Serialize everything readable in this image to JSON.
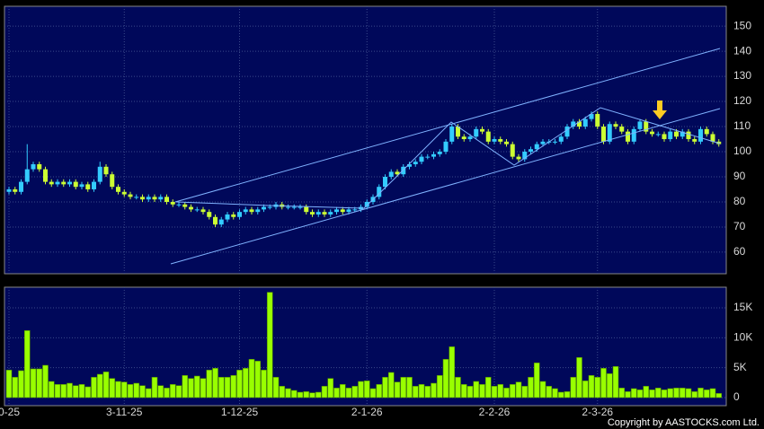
{
  "chart_data": [
    {
      "type": "candlestick",
      "open": [
        84,
        85,
        84,
        88,
        93,
        95,
        93,
        88,
        87,
        88,
        87,
        88,
        86,
        87,
        85,
        88,
        94,
        91,
        86,
        84,
        83,
        82,
        82,
        81,
        82,
        81,
        82,
        80,
        79,
        79,
        78,
        77,
        77,
        76,
        74,
        71,
        73,
        75,
        74,
        76,
        77,
        76,
        77,
        78,
        78,
        79,
        78,
        78,
        78,
        78,
        76,
        75,
        76,
        75,
        76,
        77,
        76,
        77,
        77,
        78,
        80,
        82,
        86,
        90,
        92,
        91,
        94,
        95,
        96,
        98,
        98,
        99,
        100,
        104,
        110,
        106,
        105,
        106,
        109,
        108,
        104,
        105,
        104,
        103,
        98,
        97,
        100,
        101,
        103,
        104,
        104,
        104,
        106,
        110,
        112,
        110,
        113,
        115,
        110,
        104,
        111,
        110,
        108,
        104,
        109,
        112,
        108,
        107,
        107,
        105,
        108,
        106,
        108,
        105,
        104,
        109,
        107,
        104
      ],
      "high": [
        86,
        86,
        89,
        103,
        96,
        96,
        94,
        89,
        89,
        89,
        89,
        89,
        88,
        88,
        89,
        96,
        95,
        92,
        87,
        85,
        84,
        83,
        83,
        83,
        83,
        83,
        83,
        81,
        80,
        80,
        79,
        78,
        78,
        77,
        75,
        74,
        76,
        76,
        77,
        78,
        78,
        78,
        79,
        79,
        80,
        80,
        79,
        79,
        79,
        79,
        77,
        77,
        77,
        77,
        78,
        78,
        78,
        78,
        79,
        81,
        83,
        87,
        91,
        93,
        93,
        95,
        96,
        97,
        99,
        99,
        100,
        101,
        105,
        111,
        111,
        107,
        107,
        110,
        110,
        109,
        106,
        106,
        105,
        104,
        99,
        101,
        102,
        104,
        105,
        105,
        105,
        107,
        111,
        113,
        113,
        114,
        116,
        116,
        111,
        112,
        112,
        111,
        109,
        110,
        113,
        113,
        109,
        108,
        108,
        109,
        109,
        109,
        109,
        106,
        110,
        110,
        108,
        105
      ],
      "low": [
        83,
        83,
        83,
        87,
        92,
        92,
        87,
        86,
        86,
        86,
        86,
        85,
        85,
        84,
        84,
        87,
        90,
        85,
        83,
        82,
        81,
        81,
        80,
        80,
        80,
        80,
        79,
        78,
        78,
        77,
        76,
        76,
        75,
        73,
        70,
        70,
        72,
        73,
        73,
        75,
        75,
        75,
        76,
        77,
        77,
        77,
        77,
        77,
        77,
        75,
        74,
        74,
        74,
        74,
        75,
        75,
        75,
        76,
        76,
        77,
        79,
        81,
        85,
        89,
        90,
        90,
        93,
        94,
        95,
        97,
        97,
        98,
        99,
        103,
        105,
        104,
        104,
        105,
        107,
        103,
        103,
        103,
        102,
        97,
        96,
        96,
        99,
        100,
        102,
        103,
        103,
        103,
        105,
        109,
        109,
        109,
        112,
        109,
        103,
        103,
        109,
        107,
        103,
        103,
        108,
        107,
        106,
        106,
        104,
        104,
        105,
        105,
        104,
        103,
        103,
        106,
        103,
        102
      ],
      "close": [
        85,
        84,
        88,
        93,
        95,
        93,
        88,
        87,
        88,
        87,
        88,
        86,
        87,
        85,
        88,
        94,
        91,
        86,
        84,
        83,
        82,
        82,
        81,
        82,
        81,
        82,
        80,
        79,
        79,
        78,
        77,
        77,
        76,
        74,
        71,
        73,
        75,
        74,
        76,
        77,
        76,
        77,
        78,
        78,
        79,
        78,
        78,
        78,
        78,
        76,
        75,
        76,
        75,
        76,
        77,
        76,
        77,
        77,
        78,
        80,
        82,
        86,
        90,
        92,
        91,
        94,
        95,
        96,
        98,
        98,
        99,
        100,
        104,
        110,
        106,
        105,
        106,
        109,
        108,
        104,
        105,
        104,
        103,
        98,
        97,
        100,
        101,
        103,
        104,
        104,
        104,
        106,
        110,
        112,
        110,
        113,
        115,
        110,
        104,
        111,
        110,
        108,
        104,
        109,
        112,
        108,
        107,
        107,
        105,
        108,
        106,
        108,
        105,
        104,
        109,
        107,
        104,
        103
      ],
      "up_color": "#33ccff",
      "down_color": "#ccff33",
      "ylim": [
        51.4,
        157.9
      ],
      "yticks": [
        60,
        70,
        80,
        90,
        100,
        110,
        120,
        130,
        140,
        150
      ],
      "grid": true
    },
    {
      "type": "bar",
      "categories": [
        "0-25",
        null,
        null,
        null,
        null,
        null,
        null,
        null,
        null,
        null,
        null,
        null,
        null,
        null,
        null,
        null,
        null,
        null,
        null,
        "3-11-25",
        null,
        null,
        null,
        null,
        null,
        null,
        null,
        null,
        null,
        null,
        null,
        null,
        null,
        null,
        null,
        null,
        null,
        null,
        "1-12-25",
        null,
        null,
        null,
        null,
        null,
        null,
        null,
        null,
        null,
        null,
        null,
        null,
        null,
        null,
        null,
        null,
        null,
        null,
        null,
        null,
        "2-1-26",
        null,
        null,
        null,
        null,
        null,
        null,
        null,
        null,
        null,
        null,
        null,
        null,
        null,
        null,
        null,
        null,
        null,
        null,
        null,
        null,
        "2-2-26",
        null,
        null,
        null,
        null,
        null,
        null,
        null,
        null,
        null,
        null,
        null,
        null,
        null,
        null,
        null,
        null,
        "2-3-26",
        null,
        null,
        null,
        null,
        null,
        null,
        null,
        null,
        null,
        null,
        null,
        null,
        null,
        null,
        null,
        null,
        null,
        null,
        null,
        null
      ],
      "values": [
        4600,
        3400,
        4500,
        11200,
        4800,
        4800,
        5400,
        2700,
        2200,
        2200,
        2400,
        2000,
        2200,
        1800,
        3400,
        3900,
        4300,
        3200,
        2700,
        2600,
        2200,
        2400,
        2000,
        1500,
        3400,
        2000,
        1600,
        2200,
        2000,
        3700,
        3200,
        3600,
        3200,
        4600,
        4900,
        3400,
        3400,
        3700,
        4600,
        4900,
        6400,
        6100,
        4600,
        17600,
        3400,
        1900,
        1500,
        1200,
        900,
        1000,
        800,
        900,
        1900,
        3200,
        1600,
        2200,
        1600,
        1900,
        2700,
        2800,
        1500,
        2200,
        3400,
        4200,
        2600,
        3400,
        3400,
        1900,
        2200,
        1900,
        2400,
        3700,
        6400,
        8500,
        3400,
        2200,
        1900,
        2700,
        2200,
        3400,
        1900,
        2200,
        1600,
        2200,
        2600,
        1900,
        3400,
        5800,
        2700,
        1900,
        1500,
        900,
        1000,
        3400,
        6700,
        2800,
        3700,
        3400,
        4900,
        4000,
        5200,
        1600,
        1000,
        1500,
        1300,
        1900,
        1300,
        1600,
        1300,
        1500,
        1600,
        1600,
        1500,
        1000,
        1600,
        1300,
        1500,
        700
      ],
      "color": "#99ff00",
      "ylim": [
        0,
        18450
      ],
      "yticks": [
        0,
        {
          "value": 5000,
          "label": "5K"
        },
        {
          "value": 10000,
          "label": "10K"
        },
        {
          "value": 15000,
          "label": "15K"
        }
      ],
      "grid": true
    }
  ],
  "copyright": "Copyright by AASTOCKS.com Ltd."
}
